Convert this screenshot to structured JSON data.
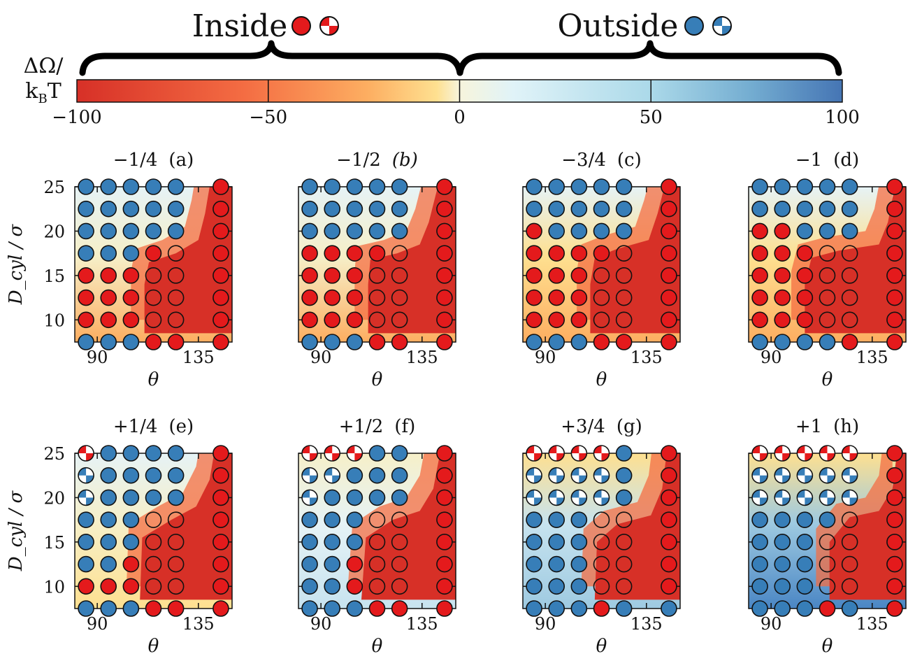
{
  "header": {
    "inside_label": "Inside",
    "outside_label": "Outside"
  },
  "colorbar": {
    "label_line1": "ΔΩ/",
    "label_line2": "k",
    "label_sub": "B",
    "label_line2_end": "T",
    "ticks": [
      "−100",
      "−50",
      "0",
      "50",
      "100"
    ],
    "range": [
      -100,
      100
    ],
    "colormap": "RdYlBu",
    "colors": {
      "neg": "#d73027",
      "mid": "#f7f4dc",
      "pos": "#4575b4",
      "marker_inside": "#e41a1c",
      "marker_outside": "#377eb8"
    }
  },
  "chart_data": {
    "type": "heatmap",
    "x_values": [
      85,
      95,
      105,
      115,
      125,
      145
    ],
    "y_values": [
      25,
      22.5,
      20,
      17.5,
      15,
      12.5,
      10,
      7.5
    ],
    "xticks": [
      "90",
      "135"
    ],
    "yticks": [
      "25",
      "20",
      "15",
      "10"
    ],
    "xlabel": "θ",
    "ylabel": "D_cyl / σ",
    "marker_legend": {
      "R": "inside, filled red",
      "r": "inside, hollow red",
      "B": "outside, filled blue",
      "P": "inside, checkered red/white",
      "Q": "outside, checkered blue/white"
    },
    "panels": [
      {
        "title": "−1/4",
        "tag": "(a)",
        "italic": false,
        "grid": [
          "BBBBBR",
          "BBBBBR",
          "BBBBBR",
          "BBBRrR",
          "RRRrrR",
          "RRRrrR",
          "RRRrrR",
          "BBBRRR"
        ]
      },
      {
        "title": "−1/2",
        "tag": "(b)",
        "italic": true,
        "grid": [
          "BBBBBR",
          "BBBBBR",
          "BBBBBR",
          "RRRRrR",
          "RRRrrR",
          "RRRrrR",
          "RRRrrR",
          "BBBRRR"
        ]
      },
      {
        "title": "−3/4",
        "tag": "(c)",
        "italic": false,
        "grid": [
          "BBBBBR",
          "BBBBBR",
          "RBBBBR",
          "RRRRrR",
          "RRRrrR",
          "RRRrrR",
          "RRRrrR",
          "BBBRRR"
        ]
      },
      {
        "title": "−1",
        "tag": "(d)",
        "italic": false,
        "grid": [
          "BBBBBR",
          "BBBBBR",
          "RRBBBR",
          "RRRrrR",
          "RRRrrR",
          "RRRrrR",
          "RRRrrR",
          "BBBBRR"
        ]
      },
      {
        "title": "+1/4",
        "tag": "(e)",
        "italic": false,
        "grid": [
          "PBBBBR",
          "QBBBBR",
          "QBBBBR",
          "BBBrrR",
          "BBBrrR",
          "BBRrrR",
          "RRRrrR",
          "BBBRRR"
        ]
      },
      {
        "title": "+1/2",
        "tag": "(f)",
        "italic": false,
        "grid": [
          "PPPBBR",
          "QQBBBR",
          "QBBBBR",
          "BBBrrR",
          "BBBrrR",
          "BBRrrR",
          "BBRrrR",
          "BBBRRR"
        ]
      },
      {
        "title": "+3/4",
        "tag": "(g)",
        "italic": false,
        "grid": [
          "PPPPBR",
          "QQQQBR",
          "QQQQBR",
          "BBBrrR",
          "BBBrrR",
          "BBBrrR",
          "BBBrrR",
          "BBBRBB"
        ]
      },
      {
        "title": "+1",
        "tag": "(h)",
        "italic": false,
        "grid": [
          "PPPPPR",
          "QQQQQR",
          "QQQQQR",
          "BBBBrR",
          "BBBrrR",
          "BBBrrR",
          "BBBrrR",
          "BBBRBR"
        ]
      }
    ]
  }
}
